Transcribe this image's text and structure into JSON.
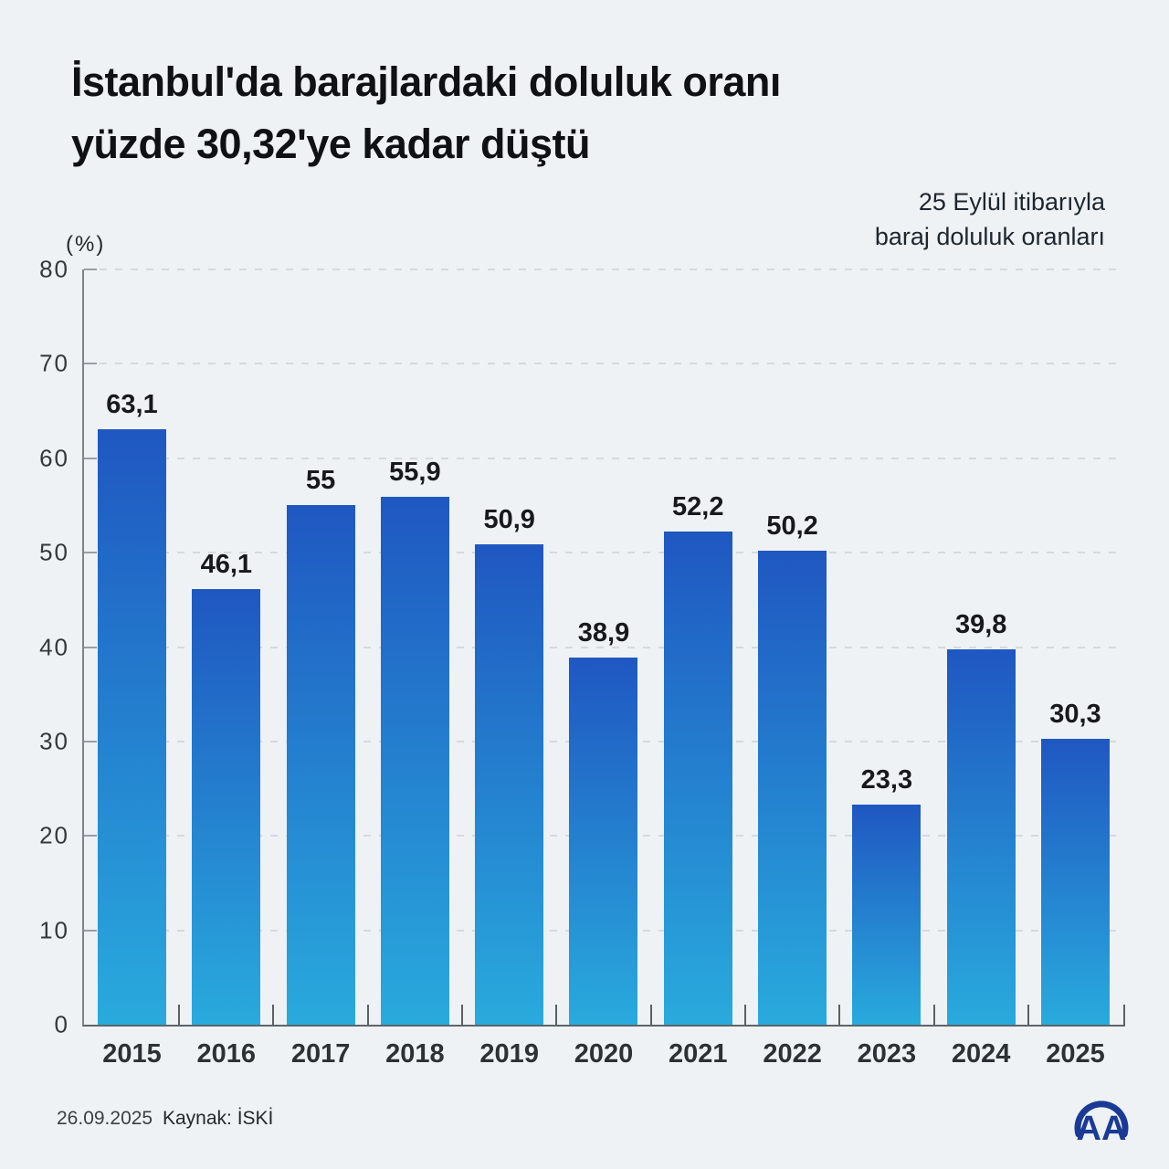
{
  "header": {
    "title_line1": "İstanbul'da barajlardaki doluluk oranı",
    "title_line2": "yüzde 30,32'ye kadar düştü",
    "subtitle_line1": "25 Eylül itibarıyla",
    "subtitle_line2": "baraj doluluk oranları"
  },
  "chart_data": {
    "type": "bar",
    "title": "İstanbul'da barajlardaki doluluk oranı yüzde 30,32'ye kadar düştü",
    "subtitle": "25 Eylül itibarıyla baraj doluluk oranları",
    "categories": [
      "2015",
      "2016",
      "2017",
      "2018",
      "2019",
      "2020",
      "2021",
      "2022",
      "2023",
      "2024",
      "2025"
    ],
    "values": [
      63.1,
      46.1,
      55,
      55.9,
      50.9,
      38.9,
      52.2,
      50.2,
      23.3,
      39.8,
      30.3
    ],
    "value_labels": [
      "63,1",
      "46,1",
      "55",
      "55,9",
      "50,9",
      "38,9",
      "52,2",
      "50,2",
      "23,3",
      "39,8",
      "30,3"
    ],
    "xlabel": "",
    "ylabel": "(%)",
    "ylim": [
      0,
      80
    ],
    "yticks": [
      0,
      10,
      20,
      30,
      40,
      50,
      60,
      70,
      80
    ],
    "grid": "horizontal-dashed",
    "legend": "none"
  },
  "footer": {
    "date": "26.09.2025",
    "source": "Kaynak: İSKİ"
  },
  "logo": {
    "text": "AA"
  },
  "colors": {
    "background": "#eef2f5",
    "bar_gradient_top": "#1f57c1",
    "bar_gradient_bottom": "#29aadd",
    "grid": "#d6dade",
    "y_axis": "#7d848a",
    "baseline": "#5d6469",
    "tick": "#5a6065",
    "value_text": "#17191c",
    "title_text": "#101114",
    "logo_blue": "#1b3a94"
  }
}
